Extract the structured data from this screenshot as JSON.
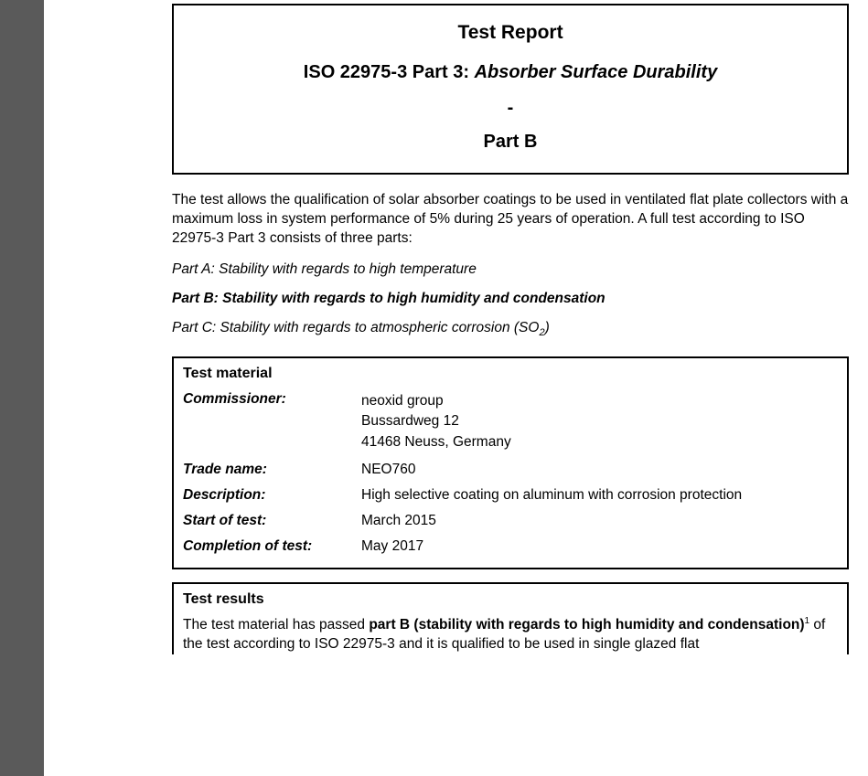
{
  "header": {
    "title": "Test Report",
    "standard_prefix": "ISO 22975-3 Part 3: ",
    "standard_italic": "Absorber Surface Durability",
    "dash": "-",
    "part": "Part B"
  },
  "intro": "The test allows the qualification of solar absorber coatings to be used in ventilated flat plate collectors with a maximum loss in system performance of 5% during 25 years of operation. A full test according to ISO 22975-3 Part 3 consists of three parts:",
  "parts": {
    "a": "Part A: Stability with regards to high temperature",
    "b": "Part B: Stability with regards to high humidity and condensation",
    "c_pre": "Part C: Stability with regards to atmospheric corrosion (SO",
    "c_sub": "2",
    "c_post": ")"
  },
  "material": {
    "heading": "Test material",
    "commissioner_label": "Commissioner:",
    "commissioner_line1": "neoxid group",
    "commissioner_line2": "Bussardweg 12",
    "commissioner_line3": "41468 Neuss, Germany",
    "tradename_label": "Trade name:",
    "tradename_value": "NEO760",
    "description_label": "Description:",
    "description_value": "High selective coating on aluminum with corrosion protection",
    "start_label": "Start of test:",
    "start_value": "March 2015",
    "completion_label": "Completion of test:",
    "completion_value": "May 2017"
  },
  "results": {
    "heading": "Test results",
    "line_pre": "The test material has passed ",
    "line_bold": "part B (stability with regards to high humidity and condensation)",
    "sup": "1",
    "line_post": " of the test according to ISO 22975-3 and it is qualified to be used in single glazed flat"
  },
  "style": {
    "body_bg": "#ffffff",
    "strip_bg": "#5a5a5a",
    "text_color": "#000000",
    "border_color": "#000000",
    "title_fontsize": 21,
    "heading_fontsize": 20,
    "body_fontsize": 15.5
  }
}
